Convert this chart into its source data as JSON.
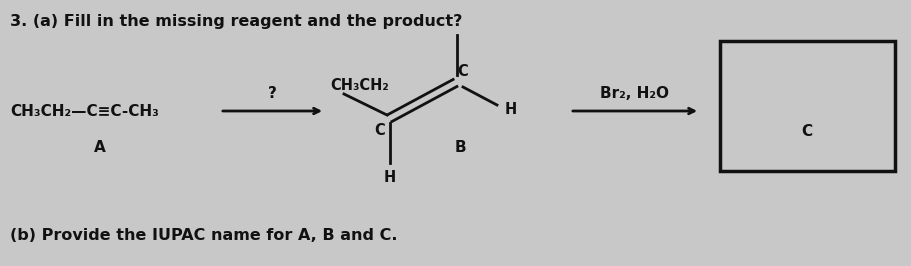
{
  "background_color": "#c8c8c8",
  "title": "3. (a) Fill in the missing reagent and the product?",
  "subtitle": "(b) Provide the IUPAC name for A, B and C.",
  "title_fontsize": 11.5,
  "subtitle_fontsize": 11.5,
  "text_color": "#111111",
  "reactant_formula": "CH₃CH₂—C≡C-CH₃",
  "reactant_label": "A",
  "reagent_above_arrow1": "?",
  "product_label": "B",
  "reagent_above_arrow2": "Br₂, H₂O",
  "box_label": "C",
  "alkene_top_C": "C",
  "alkene_bottom_C": "C",
  "alkene_H_right": "H",
  "alkene_CH3CH2": "CH₃CH₂",
  "alkene_H_bottom": "H"
}
